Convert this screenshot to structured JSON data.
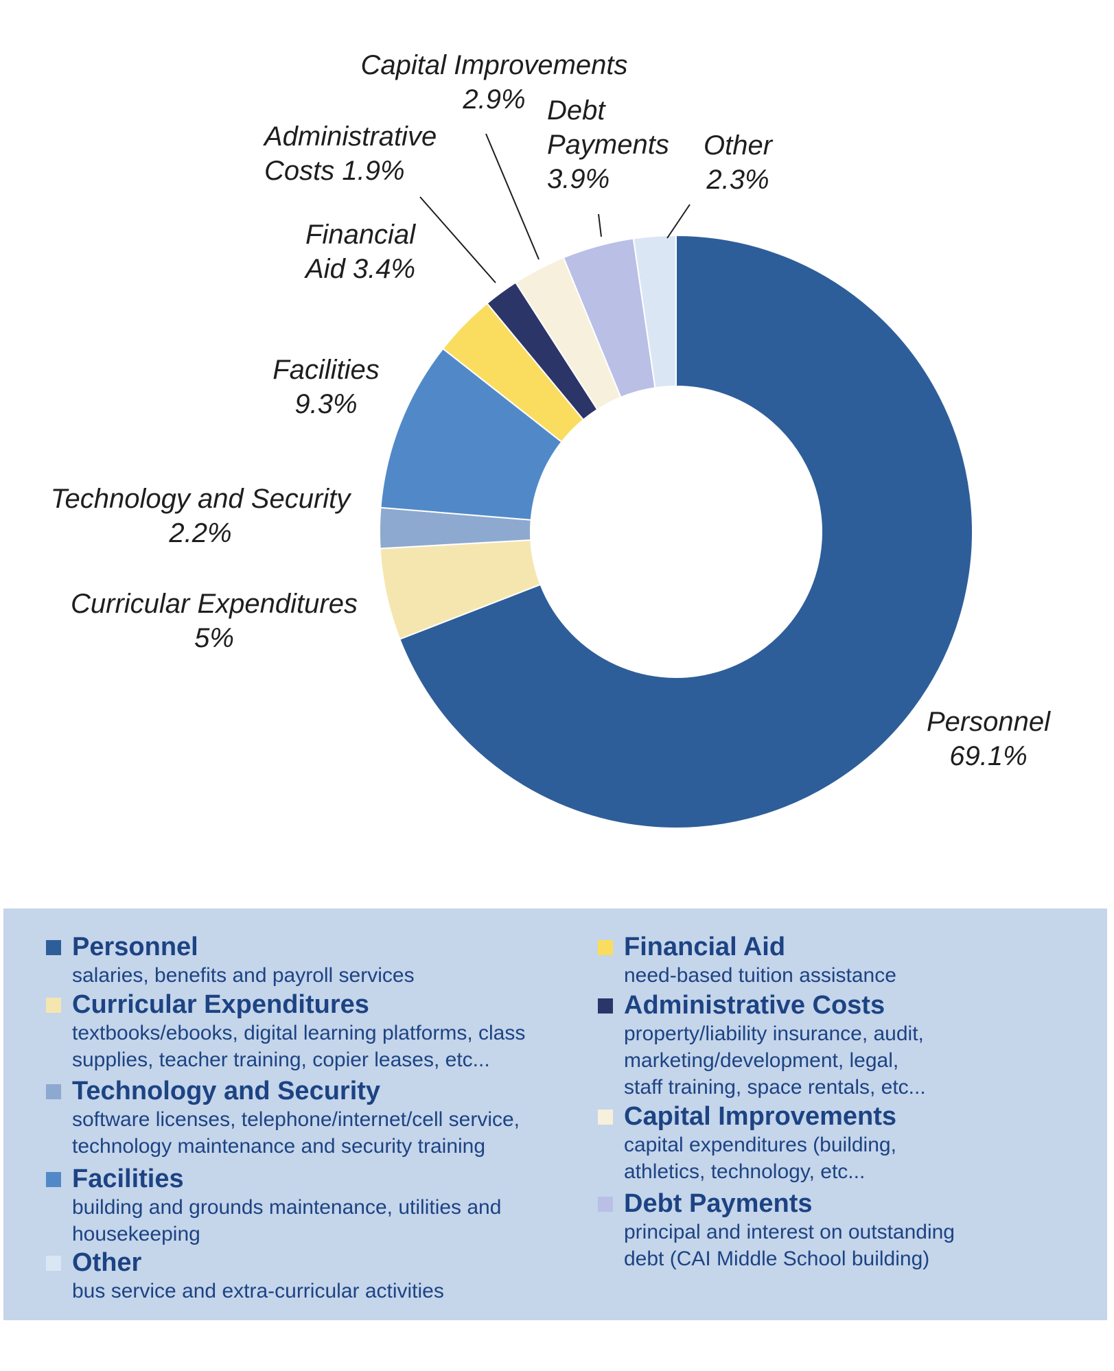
{
  "chart_data": {
    "type": "pie",
    "title": "",
    "categories": [
      "Personnel",
      "Curricular Expenditures",
      "Technology and Security",
      "Facilities",
      "Financial Aid",
      "Administrative Costs",
      "Capital Improvements",
      "Debt Payments",
      "Other"
    ],
    "values": [
      69.1,
      5,
      2.2,
      9.3,
      3.4,
      1.9,
      2.9,
      3.9,
      2.3
    ],
    "colors": [
      "#2e5e99",
      "#f5e6b0",
      "#8ea9cf",
      "#5189c8",
      "#fadd5f",
      "#2b3568",
      "#f7f0dc",
      "#b9bfe5",
      "#dbe6f4"
    ],
    "labels": [
      {
        "lines": [
          "Personnel",
          "69.1%"
        ]
      },
      {
        "lines": [
          "Curricular Expenditures",
          "5%"
        ]
      },
      {
        "lines": [
          "Technology and Security",
          "2.2%"
        ]
      },
      {
        "lines": [
          "Facilities",
          "9.3%"
        ]
      },
      {
        "lines": [
          "Financial",
          "Aid  3.4%"
        ]
      },
      {
        "lines": [
          "Administrative",
          "Costs   1.9%"
        ]
      },
      {
        "lines": [
          "Capital Improvements",
          "2.9%"
        ]
      },
      {
        "lines": [
          "Debt",
          "Payments",
          "3.9%"
        ]
      },
      {
        "lines": [
          "Other",
          "2.3%"
        ]
      }
    ],
    "legend_position": "bottom"
  },
  "legend": {
    "left": [
      {
        "title": "Personnel",
        "desc": "salaries, benefits and payroll services",
        "color": "#2e5e99"
      },
      {
        "title": "Curricular Expenditures",
        "desc": "textbooks/ebooks, digital learning platforms, class\nsupplies, teacher training, copier leases, etc...",
        "color": "#f5e6b0"
      },
      {
        "title": "Technology and Security",
        "desc": "software licenses, telephone/internet/cell service,\ntechnology maintenance and security training",
        "color": "#8ea9cf"
      },
      {
        "title": "Facilities",
        "desc": "building and grounds maintenance, utilities and\nhousekeeping",
        "color": "#5189c8"
      },
      {
        "title": "Other",
        "desc": "bus service and extra-curricular activities",
        "color": "#dbe6f4"
      }
    ],
    "right": [
      {
        "title": "Financial Aid",
        "desc": "need-based tuition assistance",
        "color": "#fadd5f"
      },
      {
        "title": "Administrative Costs",
        "desc": "property/liability insurance, audit,\nmarketing/development, legal,\nstaff training, space rentals, etc...",
        "color": "#2b3568"
      },
      {
        "title": "Capital Improvements",
        "desc": "capital expenditures (building,\nathletics, technology, etc...",
        "color": "#f7f0dc"
      },
      {
        "title": "Debt Payments",
        "desc": "principal and interest on outstanding\ndebt (CAI Middle School building)",
        "color": "#b9bfe5"
      }
    ]
  }
}
